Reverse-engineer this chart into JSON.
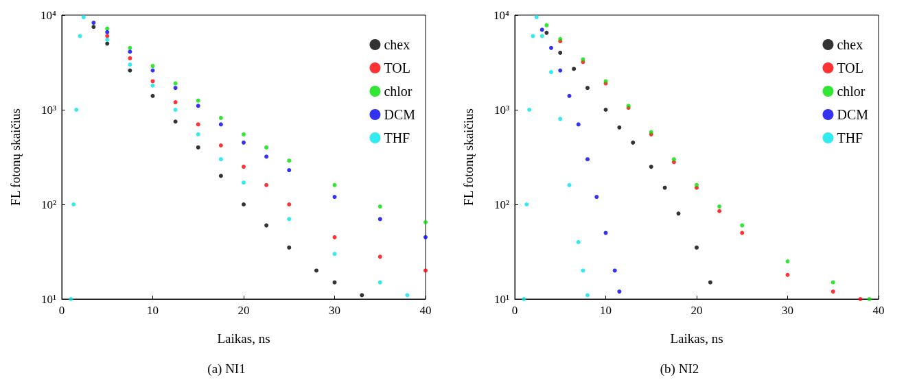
{
  "chart_data": [
    {
      "type": "scatter",
      "title": "(a) NI1",
      "xlabel": "Laikas, ns",
      "ylabel": "FL fotonų skaičius",
      "xlim": [
        0,
        40
      ],
      "xticks": [
        0,
        10,
        20,
        30,
        40
      ],
      "ylim": [
        10,
        10000
      ],
      "yticks": [
        {
          "value": 10,
          "label": "10¹"
        },
        {
          "value": 100,
          "label": "10²"
        },
        {
          "value": 1000,
          "label": "10³"
        },
        {
          "value": 10000,
          "label": "10⁴"
        }
      ],
      "log": "y",
      "grid": false,
      "legend": "top right",
      "marker": "circle",
      "series": [
        {
          "name": "chex",
          "color": "#000000",
          "x": [
            3.5,
            5,
            7.5,
            10,
            12.5,
            15,
            17.5,
            20,
            22.5,
            25,
            28,
            30,
            33
          ],
          "values": [
            7500,
            5000,
            2600,
            1400,
            750,
            400,
            200,
            100,
            60,
            35,
            20,
            15,
            11
          ]
        },
        {
          "name": "TOL",
          "color": "#ff0000",
          "x": [
            5,
            7.5,
            10,
            12.5,
            15,
            17.5,
            20,
            22.5,
            25,
            30,
            35,
            40
          ],
          "values": [
            6000,
            3500,
            2000,
            1200,
            700,
            420,
            250,
            160,
            100,
            45,
            28,
            20
          ]
        },
        {
          "name": "chlor",
          "color": "#00e000",
          "x": [
            5,
            7.5,
            10,
            12.5,
            15,
            17.5,
            20,
            22.5,
            25,
            30,
            35,
            40
          ],
          "values": [
            7200,
            4500,
            2900,
            1900,
            1250,
            820,
            550,
            400,
            290,
            160,
            95,
            65
          ]
        },
        {
          "name": "DCM",
          "color": "#0000ee",
          "x": [
            3.5,
            5,
            7.5,
            10,
            12.5,
            15,
            17.5,
            20,
            22.5,
            25,
            30,
            35,
            40
          ],
          "values": [
            8300,
            6600,
            4100,
            2600,
            1700,
            1100,
            700,
            450,
            320,
            230,
            120,
            70,
            45
          ]
        },
        {
          "name": "THF",
          "color": "#00e5ee",
          "x": [
            1.0,
            1.3,
            1.6,
            2.0,
            2.4,
            5,
            7.5,
            10,
            12.5,
            15,
            17.5,
            20,
            25,
            30,
            35,
            38
          ],
          "values": [
            10,
            100,
            1000,
            6000,
            9500,
            5500,
            3000,
            1800,
            1000,
            550,
            300,
            170,
            70,
            30,
            15,
            11
          ]
        }
      ]
    },
    {
      "type": "scatter",
      "title": "(b) NI2",
      "xlabel": "Laikas, ns",
      "ylabel": "FL fotonų skaičius",
      "xlim": [
        0,
        40
      ],
      "xticks": [
        0,
        10,
        20,
        30,
        40
      ],
      "ylim": [
        10,
        10000
      ],
      "yticks": [
        {
          "value": 10,
          "label": "10¹"
        },
        {
          "value": 100,
          "label": "10²"
        },
        {
          "value": 1000,
          "label": "10³"
        },
        {
          "value": 10000,
          "label": "10⁴"
        }
      ],
      "log": "y",
      "grid": false,
      "legend": "top right",
      "marker": "circle",
      "series": [
        {
          "name": "chex",
          "color": "#000000",
          "x": [
            3.5,
            5,
            6.5,
            8,
            10,
            11.5,
            13,
            15,
            16.5,
            18,
            20,
            21.5
          ],
          "values": [
            6500,
            4000,
            2700,
            1700,
            1000,
            650,
            450,
            250,
            150,
            80,
            35,
            15
          ]
        },
        {
          "name": "TOL",
          "color": "#ff0000",
          "x": [
            5,
            7.5,
            10,
            12.5,
            15,
            17.5,
            20,
            22.5,
            25,
            30,
            35,
            38
          ],
          "values": [
            5300,
            3200,
            1900,
            1050,
            550,
            280,
            150,
            85,
            50,
            18,
            12,
            10
          ]
        },
        {
          "name": "chlor",
          "color": "#00e000",
          "x": [
            3.5,
            5,
            7.5,
            10,
            12.5,
            15,
            17.5,
            20,
            22.5,
            25,
            30,
            35,
            39
          ],
          "values": [
            7800,
            5600,
            3400,
            2000,
            1100,
            580,
            300,
            160,
            95,
            60,
            25,
            15,
            10
          ]
        },
        {
          "name": "DCM",
          "color": "#0000ee",
          "x": [
            3,
            4,
            5,
            6,
            7,
            8,
            9,
            10,
            11,
            11.5
          ],
          "values": [
            7000,
            4500,
            2600,
            1400,
            700,
            300,
            120,
            50,
            20,
            12
          ]
        },
        {
          "name": "THF",
          "color": "#00e5ee",
          "x": [
            1.0,
            1.3,
            1.6,
            2.0,
            2.4,
            3,
            4,
            5,
            6,
            7,
            7.5,
            8
          ],
          "values": [
            10,
            100,
            1000,
            6000,
            9500,
            6000,
            2500,
            800,
            160,
            40,
            20,
            11
          ]
        }
      ]
    }
  ]
}
